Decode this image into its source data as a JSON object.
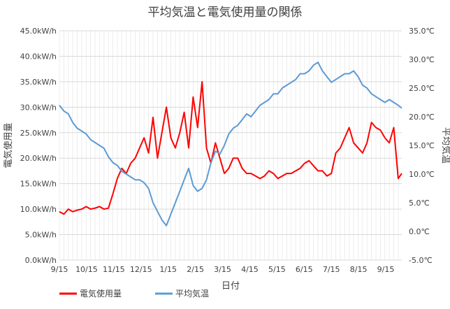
{
  "chart_data": {
    "type": "line",
    "title": "平均気温と電気使用量の関係",
    "xlabel": "日付",
    "ylabel_left": "電気使用量",
    "ylabel_right": "平均気温",
    "x_ticks": [
      "9/15",
      "10/15",
      "11/15",
      "12/15",
      "1/15",
      "2/15",
      "3/15",
      "4/15",
      "5/15",
      "6/15",
      "7/15",
      "8/15",
      "9/15"
    ],
    "y_left_ticks": [
      "0.0kW/h",
      "5.0kW/h",
      "10.0kW/h",
      "15.0kW/h",
      "20.0kW/h",
      "25.0kW/h",
      "30.0kW/h",
      "35.0kW/h",
      "40.0kW/h",
      "45.0kW/h"
    ],
    "y_right_ticks": [
      "-5.0℃",
      "0.0℃",
      "5.0℃",
      "10.0℃",
      "15.0℃",
      "20.0℃",
      "25.0℃",
      "30.0℃",
      "35.0℃"
    ],
    "ylim_left": [
      0,
      45
    ],
    "ylim_right": [
      -5,
      35
    ],
    "xlim_days": [
      0,
      384
    ],
    "grid": true,
    "legend_position": "bottom-left",
    "series": [
      {
        "name": "電気使用量",
        "axis": "left",
        "color": "#FF0000",
        "x": [
          0,
          5,
          10,
          15,
          20,
          25,
          30,
          35,
          40,
          45,
          50,
          55,
          60,
          65,
          70,
          75,
          80,
          85,
          90,
          95,
          100,
          105,
          110,
          115,
          120,
          125,
          130,
          135,
          140,
          145,
          150,
          155,
          160,
          165,
          170,
          175,
          180,
          185,
          190,
          195,
          200,
          205,
          210,
          215,
          220,
          225,
          230,
          235,
          240,
          245,
          250,
          255,
          260,
          265,
          270,
          275,
          280,
          285,
          290,
          295,
          300,
          305,
          310,
          315,
          320,
          325,
          330,
          335,
          340,
          345,
          350,
          355,
          360,
          365,
          370,
          375,
          380,
          384
        ],
        "values": [
          9.5,
          9,
          10,
          9.5,
          9.8,
          10,
          10.5,
          10,
          10.2,
          10.5,
          10,
          10.2,
          13,
          16,
          18,
          17,
          19,
          20,
          22,
          24,
          21,
          28,
          20,
          25,
          30,
          24,
          22,
          25,
          29,
          22,
          32,
          26,
          35,
          22,
          19,
          23,
          20,
          17,
          18,
          20,
          20,
          18,
          17,
          17,
          16.5,
          16,
          16.5,
          17.5,
          17,
          16,
          16.5,
          17,
          17,
          17.5,
          18,
          19,
          19.5,
          18.5,
          17.5,
          17.5,
          16.5,
          17,
          21,
          22,
          24,
          26,
          23,
          22,
          21,
          23,
          27,
          26,
          25.5,
          24,
          23,
          26,
          16,
          17
        ]
      },
      {
        "name": "平均気温",
        "axis": "right",
        "color": "#5B9BD5",
        "x": [
          0,
          5,
          10,
          15,
          20,
          25,
          30,
          35,
          40,
          45,
          50,
          55,
          60,
          65,
          70,
          75,
          80,
          85,
          90,
          95,
          100,
          105,
          110,
          115,
          120,
          125,
          130,
          135,
          140,
          145,
          150,
          155,
          160,
          165,
          170,
          175,
          180,
          185,
          190,
          195,
          200,
          205,
          210,
          215,
          220,
          225,
          230,
          235,
          240,
          245,
          250,
          255,
          260,
          265,
          270,
          275,
          280,
          285,
          290,
          295,
          300,
          305,
          310,
          315,
          320,
          325,
          330,
          335,
          340,
          345,
          350,
          355,
          360,
          365,
          370,
          375,
          380,
          384
        ],
        "values": [
          22,
          21,
          20.5,
          19,
          18,
          17.5,
          17,
          16,
          15.5,
          15,
          14.5,
          13,
          12,
          11.5,
          10.5,
          10,
          9.5,
          9,
          9,
          8.5,
          7.5,
          5,
          3.5,
          2,
          1,
          3,
          5,
          7,
          9,
          11,
          8,
          7,
          7.5,
          9,
          12,
          14,
          13.5,
          15,
          17,
          18,
          18.5,
          19.5,
          20.5,
          20,
          21,
          22,
          22.5,
          23,
          24,
          24,
          25,
          25.5,
          26,
          26.5,
          27.5,
          27.5,
          28,
          29,
          29.5,
          28,
          27,
          26,
          26.5,
          27,
          27.5,
          27.5,
          28,
          27,
          25.5,
          25,
          24,
          23.5,
          23,
          22.5,
          23,
          22.5,
          22,
          21.5
        ]
      }
    ]
  }
}
